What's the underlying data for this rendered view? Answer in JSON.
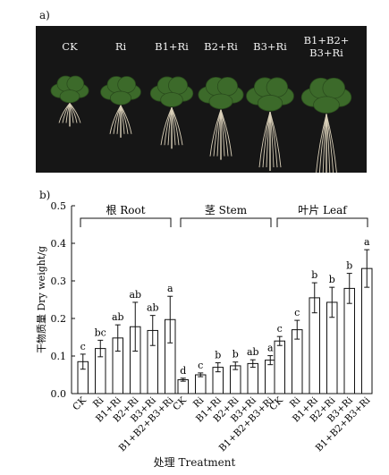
{
  "panel_a": {
    "label": "a)",
    "treatments": [
      "CK",
      "Ri",
      "B1+Ri",
      "B2+Ri",
      "B3+Ri",
      "B1+B2+\nB3+Ri"
    ]
  },
  "panel_b": {
    "label": "b)"
  },
  "colors": {
    "photo_bg": "#161616",
    "leaf": "#3c6a2a",
    "root": "#d9cfb8",
    "bar": "#ffffff",
    "stroke": "#111111"
  },
  "chart_data": {
    "type": "bar",
    "ylabel": "干物质量 Dry weight/g",
    "xlabel": "处理 Treatment",
    "ylim": [
      0,
      0.5
    ],
    "yticks": [
      "0.0",
      "0.1",
      "0.2",
      "0.3",
      "0.4",
      "0.5"
    ],
    "error_bars": true,
    "grid": false,
    "groups": [
      {
        "name": "根 Root",
        "categories": [
          "CK",
          "Ri",
          "B1+Ri",
          "B2+Ri",
          "B3+Ri",
          "B1+B2+B3+Ri"
        ],
        "values": [
          0.085,
          0.12,
          0.148,
          0.178,
          0.168,
          0.197
        ],
        "errors": [
          0.02,
          0.022,
          0.035,
          0.065,
          0.04,
          0.062
        ],
        "letters": [
          "c",
          "bc",
          "ab",
          "ab",
          "ab",
          "a"
        ]
      },
      {
        "name": "茎 Stem",
        "categories": [
          "CK",
          "Ri",
          "B1+Ri",
          "B2+Ri",
          "B3+Ri",
          "B1+B2+B3+Ri"
        ],
        "values": [
          0.037,
          0.05,
          0.07,
          0.074,
          0.08,
          0.089
        ],
        "errors": [
          0.004,
          0.005,
          0.012,
          0.01,
          0.01,
          0.012
        ],
        "letters": [
          "d",
          "c",
          "b",
          "b",
          "ab",
          "a"
        ]
      },
      {
        "name": "叶片 Leaf",
        "categories": [
          "CK",
          "Ri",
          "B1+Ri",
          "B2+Ri",
          "B3+Ri",
          "B1+B2+B3+Ri"
        ],
        "values": [
          0.14,
          0.17,
          0.255,
          0.243,
          0.28,
          0.333
        ],
        "errors": [
          0.012,
          0.025,
          0.04,
          0.04,
          0.04,
          0.05
        ],
        "letters": [
          "c",
          "c",
          "b",
          "b",
          "b",
          "a"
        ]
      }
    ]
  }
}
